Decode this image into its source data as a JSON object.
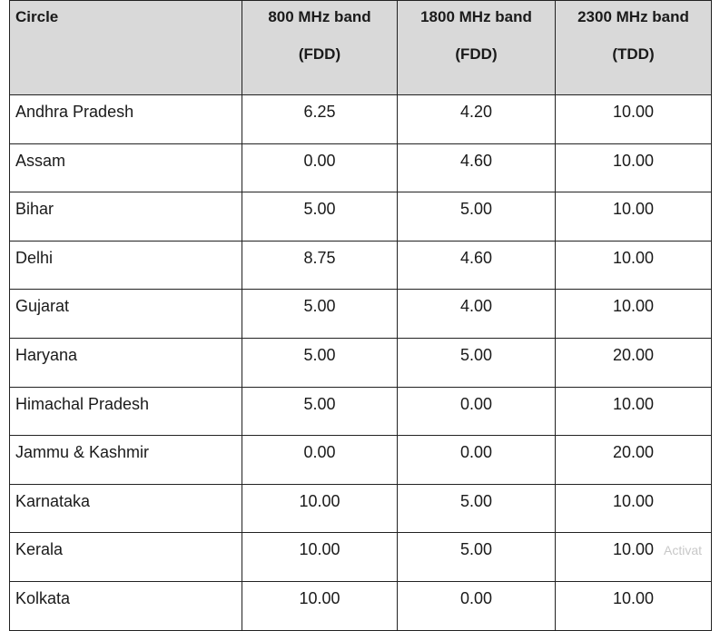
{
  "table": {
    "headers": [
      {
        "line1": "Circle",
        "line2": ""
      },
      {
        "line1": "800 MHz band",
        "line2": "(FDD)"
      },
      {
        "line1": "1800 MHz band",
        "line2": "(FDD)"
      },
      {
        "line1": "2300 MHz band",
        "line2": "(TDD)"
      }
    ],
    "rows": [
      [
        "Andhra Pradesh",
        "6.25",
        "4.20",
        "10.00"
      ],
      [
        "Assam",
        "0.00",
        "4.60",
        "10.00"
      ],
      [
        "Bihar",
        "5.00",
        "5.00",
        "10.00"
      ],
      [
        "Delhi",
        "8.75",
        "4.60",
        "10.00"
      ],
      [
        "Gujarat",
        "5.00",
        "4.00",
        "10.00"
      ],
      [
        "Haryana",
        "5.00",
        "5.00",
        "20.00"
      ],
      [
        "Himachal Pradesh",
        "5.00",
        "0.00",
        "10.00"
      ],
      [
        "Jammu & Kashmir",
        "0.00",
        "0.00",
        "20.00"
      ],
      [
        "Karnataka",
        "10.00",
        "5.00",
        "10.00"
      ],
      [
        "Kerala",
        "10.00",
        "5.00",
        "10.00"
      ],
      [
        "Kolkata",
        "10.00",
        "0.00",
        "10.00"
      ]
    ]
  },
  "watermark": "Activat"
}
